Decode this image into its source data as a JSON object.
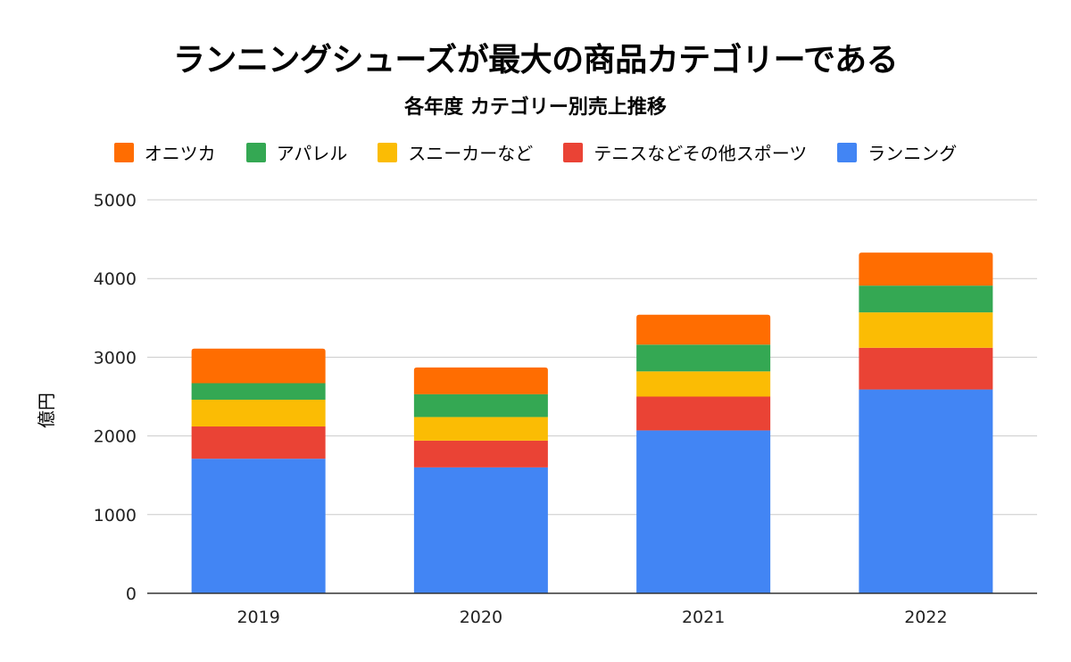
{
  "chart_data": {
    "type": "bar",
    "stacked": true,
    "title": "ランニングシューズが最大の商品カテゴリーである",
    "subtitle": "各年度 カテゴリー別売上推移",
    "xlabel": "",
    "ylabel": "億円",
    "ylim": [
      0,
      5000
    ],
    "yticks": [
      "0",
      "1000",
      "2000",
      "3000",
      "4000",
      "5000"
    ],
    "ytick_values": [
      0,
      1000,
      2000,
      3000,
      4000,
      5000
    ],
    "categories": [
      "2019",
      "2020",
      "2021",
      "2022"
    ],
    "legend_position": "top",
    "legend_order": [
      "オニツカ",
      "アパレル",
      "スニーカーなど",
      "テニスなどその他スポーツ",
      "ランニング"
    ],
    "series": [
      {
        "name": "ランニング",
        "color": "#4285F4",
        "values": [
          1710,
          1600,
          2070,
          2590
        ]
      },
      {
        "name": "テニスなどその他スポーツ",
        "color": "#EA4335",
        "values": [
          410,
          340,
          430,
          530
        ]
      },
      {
        "name": "スニーカーなど",
        "color": "#FBBC04",
        "values": [
          340,
          300,
          320,
          450
        ]
      },
      {
        "name": "アパレル",
        "color": "#34A853",
        "values": [
          210,
          290,
          340,
          340
        ]
      },
      {
        "name": "オニツカ",
        "color": "#FF6D01",
        "values": [
          440,
          340,
          380,
          420
        ]
      }
    ],
    "grid": true
  }
}
